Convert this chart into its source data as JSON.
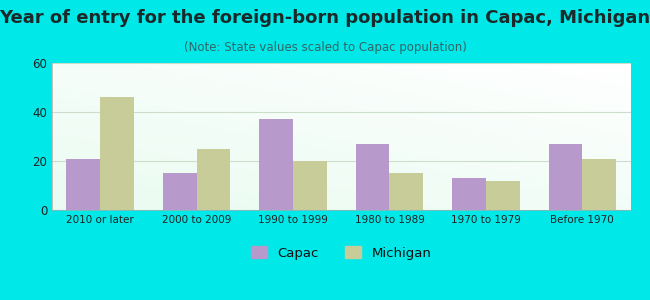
{
  "title": "Year of entry for the foreign-born population in Capac, Michigan",
  "subtitle": "(Note: State values scaled to Capac population)",
  "categories": [
    "2010 or later",
    "2000 to 2009",
    "1990 to 1999",
    "1980 to 1989",
    "1970 to 1979",
    "Before 1970"
  ],
  "capac_values": [
    21,
    15,
    37,
    27,
    13,
    27
  ],
  "michigan_values": [
    46,
    25,
    20,
    15,
    12,
    21
  ],
  "capac_color": "#b899cc",
  "michigan_color": "#c8cc99",
  "background_color": "#00e8e8",
  "ylim": [
    0,
    60
  ],
  "yticks": [
    0,
    20,
    40,
    60
  ],
  "title_fontsize": 13,
  "subtitle_fontsize": 8.5,
  "title_color": "#1a2a2a",
  "subtitle_color": "#336666",
  "legend_labels": [
    "Capac",
    "Michigan"
  ],
  "bar_width": 0.35
}
